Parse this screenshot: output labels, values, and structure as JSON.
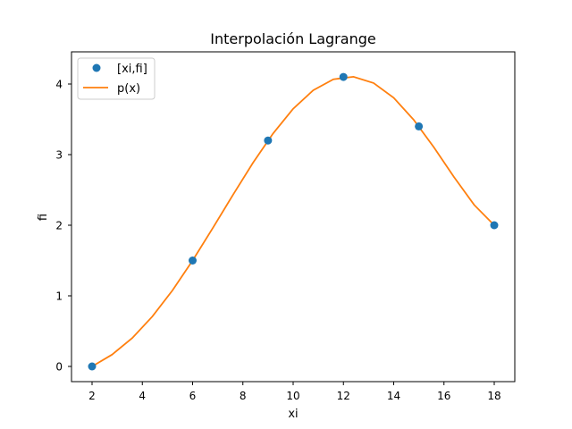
{
  "chart_data": {
    "type": "line",
    "title": "Interpolación Lagrange",
    "xlabel": "xi",
    "ylabel": "fi",
    "xlim": [
      1.2,
      18.8
    ],
    "ylim": [
      -0.205,
      4.45
    ],
    "xticks": [
      2,
      4,
      6,
      8,
      10,
      12,
      14,
      16,
      18
    ],
    "yticks": [
      0,
      1,
      2,
      3,
      4
    ],
    "grid": false,
    "legend_position": "upper left",
    "series": [
      {
        "name": "[xi,fi]",
        "type": "scatter",
        "color": "#1f77b4",
        "x": [
          2,
          6,
          9,
          12,
          15,
          18
        ],
        "y": [
          0,
          1.5,
          3.2,
          4.1,
          3.4,
          2.0
        ]
      },
      {
        "name": "p(x)",
        "type": "line",
        "color": "#ff7f0e",
        "x_start": 2,
        "x_end": 18,
        "samples": 21,
        "description": "Lagrange interpolating polynomial through [xi,fi]"
      }
    ]
  },
  "legend": {
    "items": [
      {
        "label": "[xi,fi]",
        "marker": "circle",
        "color": "#1f77b4"
      },
      {
        "label": "p(x)",
        "marker": "line",
        "color": "#ff7f0e"
      }
    ]
  }
}
